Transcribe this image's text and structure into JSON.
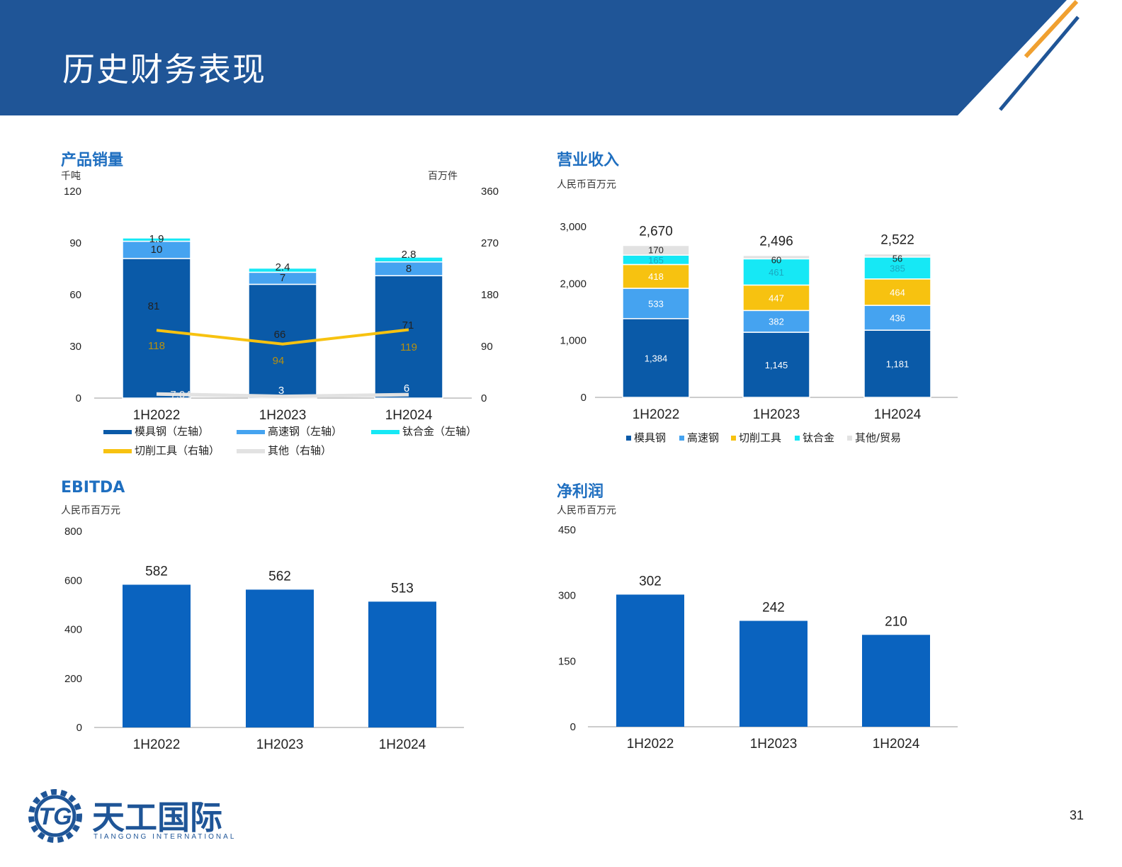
{
  "header": {
    "title": "历史财务表现"
  },
  "page_number": "31",
  "logo": {
    "name": "天工国际",
    "sub": "TIANGONG INTERNATIONAL",
    "mark": "TG"
  },
  "sections": {
    "sales": {
      "title": "产品销量",
      "unit_left": "千吨",
      "unit_right": "百万件"
    },
    "revenue": {
      "title": "营业收入",
      "unit": "人民币百万元"
    },
    "ebitda": {
      "title": "EBITDA",
      "unit": "人民币百万元"
    },
    "net_profit": {
      "title": "净利润",
      "unit": "人民币百万元"
    }
  },
  "colors": {
    "header_blue": "#1f5597",
    "accent_orange": "#f0a030",
    "mould_steel": "#0a5aa8",
    "hss": "#45a3f0",
    "titanium": "#16e8f5",
    "cutting_tools": "#f7c210",
    "others": "#e2e2e2",
    "bar_blue": "#0a63bf"
  },
  "chart_data": [
    {
      "id": "sales",
      "type": "bar",
      "categories": [
        "1H2022",
        "1H2023",
        "1H2024"
      ],
      "ylim_left": [
        0,
        120
      ],
      "yticks_left": [
        0,
        30,
        60,
        90,
        120
      ],
      "ylim_right": [
        0,
        360
      ],
      "yticks_right": [
        0,
        90,
        180,
        270,
        360
      ],
      "series": [
        {
          "name": "模具钢（左轴）",
          "type": "stacked-bar",
          "axis": "left",
          "values": [
            81,
            66,
            71
          ],
          "labels": [
            "81",
            "66",
            "71"
          ]
        },
        {
          "name": "高速钢（左轴）",
          "type": "stacked-bar",
          "axis": "left",
          "values": [
            10,
            7,
            8
          ],
          "labels": [
            "10",
            "7",
            "8"
          ]
        },
        {
          "name": "钛合金（左轴）",
          "type": "stacked-bar",
          "axis": "left",
          "values": [
            1.9,
            2.4,
            2.8
          ],
          "labels": [
            "1.9",
            "2.4",
            "2.8"
          ]
        },
        {
          "name": "切削工具（右轴）",
          "type": "line",
          "axis": "right",
          "values": [
            118,
            94,
            119
          ],
          "labels": [
            "118",
            "94",
            "119"
          ]
        },
        {
          "name": "其他（右轴）",
          "type": "line",
          "axis": "right",
          "values": [
            7.04,
            3,
            6
          ],
          "labels": [
            "7.04",
            "3",
            "6"
          ]
        }
      ],
      "legend": "bottom"
    },
    {
      "id": "revenue",
      "type": "bar",
      "stacked": true,
      "categories": [
        "1H2022",
        "1H2023",
        "1H2024"
      ],
      "ylim": [
        0,
        3000
      ],
      "yticks": [
        0,
        1000,
        2000,
        3000
      ],
      "tick_labels": [
        "0",
        "1,000",
        "2,000",
        "3,000"
      ],
      "series": [
        {
          "name": "模具钢",
          "values": [
            1384,
            1145,
            1181
          ],
          "labels": [
            "1,384",
            "1,145",
            "1,181"
          ]
        },
        {
          "name": "高速钢",
          "values": [
            533,
            382,
            436
          ],
          "labels": [
            "533",
            "382",
            "436"
          ]
        },
        {
          "name": "切削工具",
          "values": [
            418,
            447,
            464
          ],
          "labels": [
            "418",
            "447",
            "464"
          ]
        },
        {
          "name": "钛合金",
          "values": [
            165,
            461,
            385
          ],
          "labels": [
            "165",
            "461",
            "385"
          ]
        },
        {
          "name": "其他/贸易",
          "values": [
            170,
            60,
            56
          ],
          "labels": [
            "170",
            "60",
            "56"
          ]
        }
      ],
      "totals": [
        "2,670",
        "2,496",
        "2,522"
      ],
      "legend": "bottom"
    },
    {
      "id": "ebitda",
      "type": "bar",
      "categories": [
        "1H2022",
        "1H2023",
        "1H2024"
      ],
      "values": [
        582,
        562,
        513
      ],
      "labels": [
        "582",
        "562",
        "513"
      ],
      "ylim": [
        0,
        800
      ],
      "yticks": [
        0,
        200,
        400,
        600,
        800
      ]
    },
    {
      "id": "net_profit",
      "type": "bar",
      "categories": [
        "1H2022",
        "1H2023",
        "1H2024"
      ],
      "values": [
        302,
        242,
        210
      ],
      "labels": [
        "302",
        "242",
        "210"
      ],
      "ylim": [
        0,
        450
      ],
      "yticks": [
        0,
        150,
        300,
        450
      ]
    }
  ]
}
